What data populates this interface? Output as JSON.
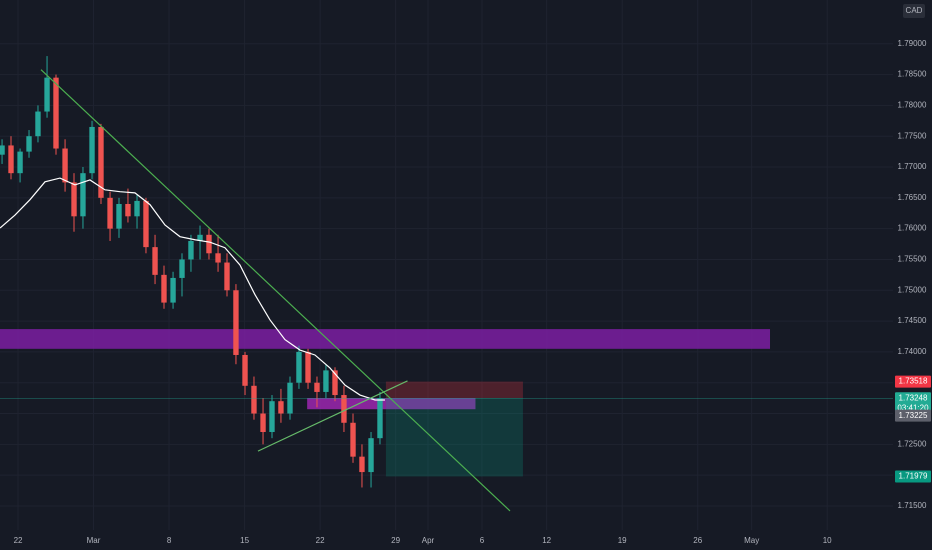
{
  "chart_data": {
    "type": "candlestick",
    "currency": "CAD",
    "up_color": "#26a69a",
    "down_color": "#ef5350",
    "grid": true,
    "xlim": [
      -1.67,
      81.1
    ],
    "ylim": [
      1.7111,
      1.7971
    ],
    "xticks": [
      {
        "value": 0,
        "label": "22"
      },
      {
        "value": 7,
        "label": "Mar"
      },
      {
        "value": 14,
        "label": "8"
      },
      {
        "value": 21,
        "label": "15"
      },
      {
        "value": 28,
        "label": "22"
      },
      {
        "value": 35,
        "label": "29"
      },
      {
        "value": 38,
        "label": "Apr"
      },
      {
        "value": 43,
        "label": "6"
      },
      {
        "value": 49,
        "label": "12"
      },
      {
        "value": 56,
        "label": "19"
      },
      {
        "value": 63,
        "label": "26"
      },
      {
        "value": 68,
        "label": "May"
      },
      {
        "value": 75,
        "label": "10"
      }
    ],
    "yticks": [
      {
        "value": 1.715,
        "label": "1.71500"
      },
      {
        "value": 1.72,
        "label": "1.72000"
      },
      {
        "value": 1.725,
        "label": "1.72500"
      },
      {
        "value": 1.73,
        "label": "1.73000"
      },
      {
        "value": 1.735,
        "label": "1.73500"
      },
      {
        "value": 1.74,
        "label": "1.74000"
      },
      {
        "value": 1.745,
        "label": "1.74500"
      },
      {
        "value": 1.75,
        "label": "1.75000"
      },
      {
        "value": 1.755,
        "label": "1.75500"
      },
      {
        "value": 1.76,
        "label": "1.76000"
      },
      {
        "value": 1.765,
        "label": "1.76500"
      },
      {
        "value": 1.77,
        "label": "1.77000"
      },
      {
        "value": 1.775,
        "label": "1.77500"
      },
      {
        "value": 1.78,
        "label": "1.78000"
      },
      {
        "value": 1.785,
        "label": "1.78500"
      },
      {
        "value": 1.79,
        "label": "1.79000"
      }
    ],
    "x": [
      -1.48,
      -0.65,
      0.19,
      1.02,
      1.85,
      2.69,
      3.52,
      4.36,
      5.19,
      6.02,
      6.86,
      7.69,
      8.53,
      9.36,
      10.19,
      11.03,
      11.86,
      12.7,
      13.53,
      14.37,
      15.2,
      16.03,
      16.87,
      17.7,
      18.54,
      19.37,
      20.2,
      21.04,
      21.87,
      22.71,
      23.54,
      24.37,
      25.21,
      26.04,
      26.88,
      27.71,
      28.54,
      29.38,
      30.21,
      31.05,
      31.88,
      32.72,
      33.55
    ],
    "open": [
      1.772,
      1.7735,
      1.769,
      1.7725,
      1.775,
      1.779,
      1.7845,
      1.773,
      1.7675,
      1.762,
      1.769,
      1.7765,
      1.765,
      1.76,
      1.764,
      1.762,
      1.7645,
      1.757,
      1.7525,
      1.748,
      1.752,
      1.755,
      1.758,
      1.759,
      1.756,
      1.7545,
      1.75,
      1.7395,
      1.7345,
      1.73,
      1.727,
      1.732,
      1.73,
      1.735,
      1.74,
      1.735,
      1.7335,
      1.737,
      1.733,
      1.7285,
      1.723,
      1.7205,
      1.726
    ],
    "high": [
      1.7745,
      1.775,
      1.773,
      1.776,
      1.78,
      1.788,
      1.785,
      1.7745,
      1.769,
      1.77,
      1.7775,
      1.777,
      1.766,
      1.765,
      1.7665,
      1.7655,
      1.765,
      1.759,
      1.754,
      1.753,
      1.756,
      1.759,
      1.7605,
      1.76,
      1.759,
      1.756,
      1.751,
      1.74,
      1.736,
      1.7325,
      1.733,
      1.734,
      1.736,
      1.741,
      1.7405,
      1.736,
      1.738,
      1.7375,
      1.7345,
      1.73,
      1.725,
      1.727,
      1.7335
    ],
    "low": [
      1.7705,
      1.768,
      1.7675,
      1.7715,
      1.774,
      1.778,
      1.772,
      1.766,
      1.7595,
      1.76,
      1.768,
      1.764,
      1.758,
      1.7585,
      1.761,
      1.76,
      1.756,
      1.751,
      1.747,
      1.747,
      1.749,
      1.753,
      1.755,
      1.755,
      1.753,
      1.749,
      1.738,
      1.733,
      1.729,
      1.725,
      1.726,
      1.7285,
      1.729,
      1.734,
      1.734,
      1.731,
      1.7325,
      1.732,
      1.727,
      1.722,
      1.718,
      1.718,
      1.725
    ],
    "close": [
      1.7735,
      1.769,
      1.7725,
      1.775,
      1.779,
      1.7845,
      1.773,
      1.7675,
      1.762,
      1.769,
      1.7765,
      1.765,
      1.76,
      1.764,
      1.762,
      1.7645,
      1.757,
      1.7525,
      1.748,
      1.752,
      1.755,
      1.758,
      1.759,
      1.756,
      1.7545,
      1.75,
      1.7395,
      1.7345,
      1.73,
      1.727,
      1.732,
      1.73,
      1.735,
      1.74,
      1.735,
      1.7335,
      1.737,
      1.733,
      1.7285,
      1.723,
      1.7205,
      1.726,
      1.7325
    ],
    "ma": {
      "color": "#ffffff",
      "x": [
        -1.67,
        -0.28,
        1.11,
        2.5,
        3.89,
        5.28,
        6.67,
        8.06,
        9.45,
        10.84,
        12.23,
        13.62,
        15.01,
        16.4,
        17.79,
        19.18,
        20.57,
        21.96,
        23.35,
        24.74,
        26.13,
        27.52,
        28.91,
        30.31,
        31.7,
        33.09,
        34.01
      ],
      "values": [
        1.7601,
        1.7622,
        1.7647,
        1.7676,
        1.7682,
        1.7671,
        1.7679,
        1.7663,
        1.766,
        1.7658,
        1.7639,
        1.7606,
        1.7587,
        1.7582,
        1.7578,
        1.7569,
        1.7541,
        1.7493,
        1.7452,
        1.742,
        1.7403,
        1.7395,
        1.7374,
        1.7346,
        1.733,
        1.7322,
        1.7322
      ]
    },
    "zones": [
      {
        "x": [
          -1.67,
          69.7
        ],
        "values": [
          1.7437,
          1.7405
        ],
        "color": "#7b1fa2"
      },
      {
        "x": [
          26.8,
          42.4
        ],
        "values": [
          1.7325,
          1.7307
        ],
        "color": "#9c27b0"
      }
    ],
    "trendlines": [
      {
        "x": [
          2.13,
          45.6
        ],
        "values": [
          1.7858,
          1.7142
        ],
        "color": "#4caf50"
      },
      {
        "x": [
          22.24,
          36.1
        ],
        "values": [
          1.7239,
          1.7353
        ],
        "color": "#66bb6a"
      }
    ],
    "position": {
      "start": 34.1,
      "end": 46.8,
      "entry": 1.73248,
      "stop": 1.73518,
      "target": 1.71979,
      "stop_color": "#f23645",
      "target_color": "#089981"
    },
    "last_price": 1.73248,
    "last_color": "#22ab94",
    "countdown": "03:41:20",
    "marker_price": 1.73225
  }
}
